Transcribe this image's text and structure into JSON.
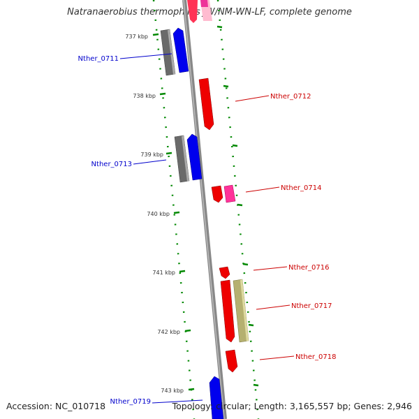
{
  "title": "Natranaerobius thermophilus JW/NM-WN-LF, complete genome",
  "accession": "Accession: NC_010718",
  "summary": "Topology: circular; Length: 3,165,557 bp; Genes: 2,946",
  "ticks": [
    "737 kbp",
    "738 kbp",
    "739 kbp",
    "740 kbp",
    "741 kbp",
    "742 kbp",
    "743 kbp"
  ],
  "genes": [
    {
      "label": "Nther_0711",
      "color": "#0000cc"
    },
    {
      "label": "Nther_0712",
      "color": "#cc0000"
    },
    {
      "label": "Nther_0713",
      "color": "#0000cc"
    },
    {
      "label": "Nther_0714",
      "color": "#cc0000"
    },
    {
      "label": "Nther_0716",
      "color": "#cc0000"
    },
    {
      "label": "Nther_0717",
      "color": "#cc0000"
    },
    {
      "label": "Nther_0718",
      "color": "#cc0000"
    },
    {
      "label": "Nther_0719",
      "color": "#0000cc"
    }
  ],
  "colors": {
    "forward_cds": "#ff0000",
    "reverse_cds": "#0000ff",
    "gray_feature": "#666666",
    "pink_feature": "#ff3399",
    "olive_feature": "#b5b070",
    "backbone": "#888888",
    "dots": "#008800"
  }
}
